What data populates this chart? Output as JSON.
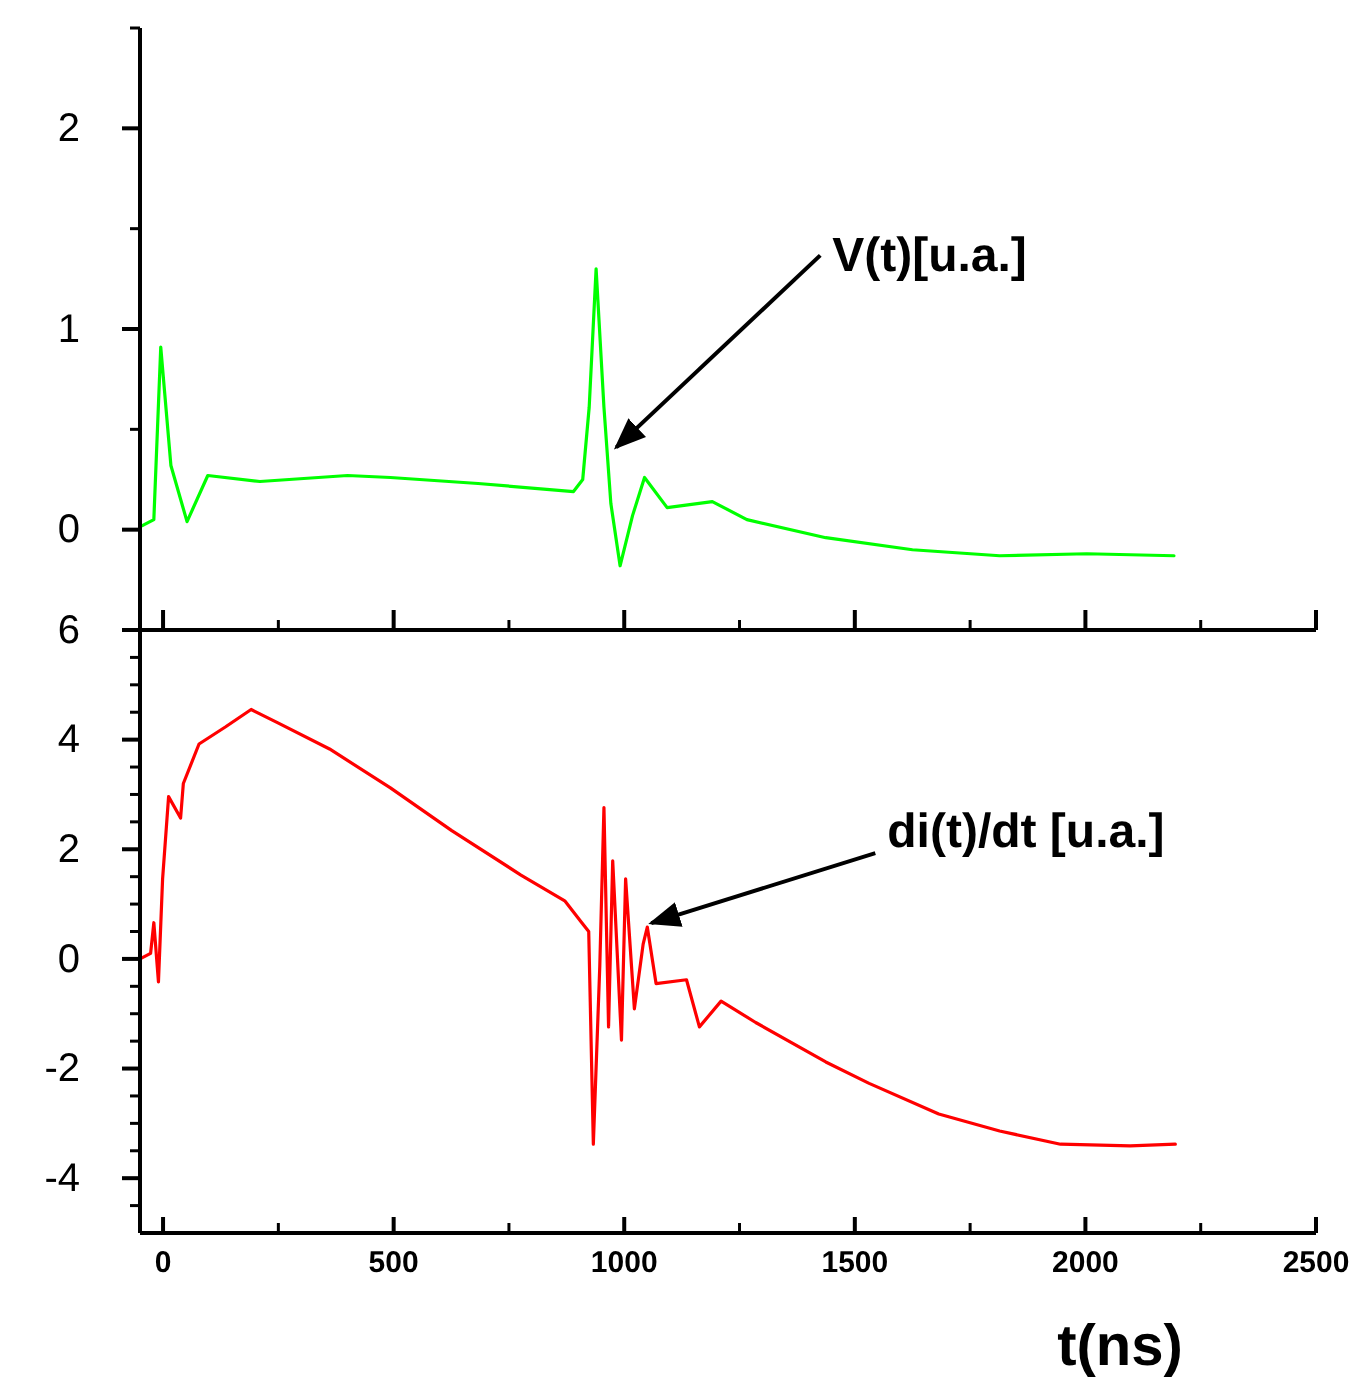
{
  "chart_data": [
    {
      "type": "line",
      "tick_labels": "y",
      "xlim": [
        -50,
        2500
      ],
      "ylim": [
        -0.5,
        2.5
      ],
      "xticks": [
        {
          "value": 0,
          "label": null
        },
        {
          "value": 250,
          "label": null
        },
        {
          "value": 500,
          "label": null
        },
        {
          "value": 750,
          "label": null
        },
        {
          "value": 1000,
          "label": null
        },
        {
          "value": 1250,
          "label": null
        },
        {
          "value": 1500,
          "label": null
        },
        {
          "value": 1750,
          "label": null
        },
        {
          "value": 2000,
          "label": null
        },
        {
          "value": 2250,
          "label": null
        },
        {
          "value": 2500,
          "label": null
        }
      ],
      "yticks": [
        0,
        {
          "value": 0.5,
          "label": null
        },
        1,
        {
          "value": 1.5,
          "label": null
        },
        2,
        {
          "value": 2.5,
          "label": null
        }
      ],
      "x": [
        -45,
        -20,
        -5,
        17,
        52,
        97,
        210,
        400,
        493,
        683,
        890,
        910,
        924,
        939,
        956,
        971,
        991,
        1018,
        1044,
        1093,
        1191,
        1266,
        1437,
        1625,
        1814,
        2003,
        2192
      ],
      "series": [
        {
          "color": "#00ff00",
          "values": [
            0.02,
            0.05,
            0.91,
            0.32,
            0.04,
            0.27,
            0.24,
            0.27,
            0.26,
            0.23,
            0.19,
            0.25,
            0.61,
            1.3,
            0.61,
            0.13,
            -0.18,
            0.07,
            0.26,
            0.11,
            0.14,
            0.05,
            -0.04,
            -0.1,
            -0.13,
            -0.12,
            -0.13
          ]
        }
      ],
      "annotations": [
        {
          "text": "V(t)[u.a.]",
          "x": 974,
          "y": 0.39
        }
      ]
    },
    {
      "type": "line",
      "xlim": [
        -50,
        2500
      ],
      "ylim": [
        -5,
        6
      ],
      "xlabel": "t(ns)",
      "xticks": [
        0,
        {
          "value": 250,
          "label": null
        },
        500,
        {
          "value": 750,
          "label": null
        },
        1000,
        {
          "value": 1250,
          "label": null
        },
        1500,
        {
          "value": 1750,
          "label": null
        },
        2000,
        {
          "value": 2250,
          "label": null
        },
        2500
      ],
      "yticks": [
        {
          "value": -4.5,
          "label": null
        },
        -4,
        {
          "value": -3.5,
          "label": null
        },
        {
          "value": -3,
          "label": null
        },
        {
          "value": -2.5,
          "label": null
        },
        -2,
        {
          "value": -1.5,
          "label": null
        },
        {
          "value": -1,
          "label": null
        },
        {
          "value": -0.5,
          "label": null
        },
        0,
        {
          "value": 0.5,
          "label": null
        },
        {
          "value": 1,
          "label": null
        },
        {
          "value": 1.5,
          "label": null
        },
        2,
        {
          "value": 2.5,
          "label": null
        },
        {
          "value": 3,
          "label": null
        },
        {
          "value": 3.5,
          "label": null
        },
        4,
        {
          "value": 4.5,
          "label": null
        },
        {
          "value": 5,
          "label": null
        },
        {
          "value": 5.5,
          "label": null
        },
        6
      ],
      "x": [
        -50,
        -27,
        -20,
        -10,
        -1,
        12,
        38,
        44,
        78,
        135,
        191,
        248,
        361,
        493,
        626,
        776,
        871,
        908,
        923,
        933,
        947,
        956,
        966,
        975,
        994,
        1003,
        1022,
        1041,
        1050,
        1069,
        1135,
        1163,
        1210,
        1285,
        1437,
        1531,
        1682,
        1814,
        1946,
        2097,
        2195
      ],
      "series": [
        {
          "color": "#ff0000",
          "values": [
            0,
            0.1,
            0.66,
            -0.42,
            1.46,
            2.96,
            2.57,
            3.2,
            3.92,
            4.23,
            4.55,
            4.31,
            3.83,
            3.12,
            2.34,
            1.53,
            1.06,
            0.66,
            0.5,
            -3.38,
            -0.13,
            2.76,
            -1.24,
            1.79,
            -1.48,
            1.46,
            -0.91,
            0.27,
            0.58,
            -0.45,
            -0.38,
            -1.24,
            -0.77,
            -1.16,
            -1.88,
            -2.27,
            -2.83,
            -3.14,
            -3.38,
            -3.41,
            -3.38
          ]
        }
      ],
      "annotations": [
        {
          "text": "di(t)/dt [u.a.]",
          "x": 1050,
          "y": 0.58
        }
      ]
    }
  ]
}
